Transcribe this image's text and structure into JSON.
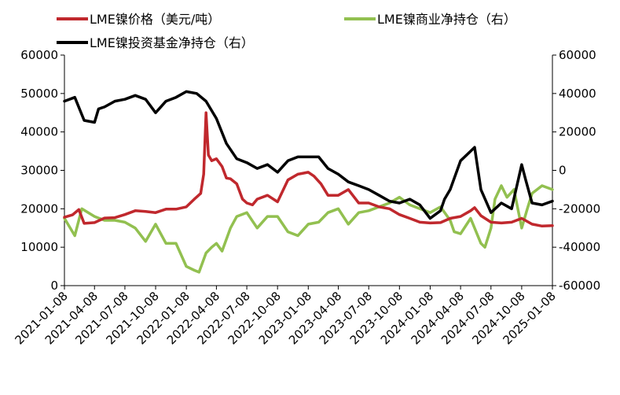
{
  "chart_data": {
    "type": "line",
    "title": "",
    "xlabel": "",
    "ylabel": "",
    "ylim": [
      0,
      60000
    ],
    "y2lim": [
      -60000,
      60000
    ],
    "y_ticks": [
      "0",
      "10000",
      "20000",
      "30000",
      "40000",
      "50000",
      "60000"
    ],
    "y2_ticks": [
      "-60000",
      "-40000",
      "-20000",
      "0",
      "20000",
      "40000",
      "60000"
    ],
    "x_ticks": [
      "2021-01-08",
      "2021-04-08",
      "2021-07-08",
      "2021-10-08",
      "2022-01-08",
      "2022-04-08",
      "2022-07-08",
      "2022-10-08",
      "2023-01-08",
      "2023-04-08",
      "2023-07-08",
      "2023-10-08",
      "2024-01-08",
      "2024-04-08",
      "2024-07-08",
      "2024-10-08",
      "2025-01-08"
    ],
    "legend_position": "top",
    "grid": false,
    "series": [
      {
        "name": "LME镍价格（美元/吨）",
        "axis": "left",
        "color": "#c0282d",
        "points": [
          [
            "2021-01-08",
            17800
          ],
          [
            "2021-02-01",
            18400
          ],
          [
            "2021-02-20",
            19800
          ],
          [
            "2021-03-08",
            16200
          ],
          [
            "2021-04-08",
            16400
          ],
          [
            "2021-05-08",
            17600
          ],
          [
            "2021-06-08",
            17700
          ],
          [
            "2021-07-08",
            18500
          ],
          [
            "2021-08-08",
            19500
          ],
          [
            "2021-09-08",
            19300
          ],
          [
            "2021-10-08",
            19000
          ],
          [
            "2021-11-08",
            19900
          ],
          [
            "2021-12-08",
            19900
          ],
          [
            "2022-01-08",
            20500
          ],
          [
            "2022-02-01",
            22500
          ],
          [
            "2022-02-20",
            24000
          ],
          [
            "2022-03-01",
            29000
          ],
          [
            "2022-03-08",
            45000
          ],
          [
            "2022-03-15",
            34000
          ],
          [
            "2022-03-25",
            32500
          ],
          [
            "2022-04-08",
            33000
          ],
          [
            "2022-04-25",
            31000
          ],
          [
            "2022-05-08",
            28000
          ],
          [
            "2022-05-20",
            27800
          ],
          [
            "2022-06-08",
            26500
          ],
          [
            "2022-06-25",
            22500
          ],
          [
            "2022-07-08",
            21500
          ],
          [
            "2022-07-25",
            21000
          ],
          [
            "2022-08-08",
            22500
          ],
          [
            "2022-09-08",
            23500
          ],
          [
            "2022-10-08",
            21800
          ],
          [
            "2022-11-08",
            27500
          ],
          [
            "2022-12-08",
            29000
          ],
          [
            "2023-01-08",
            29500
          ],
          [
            "2023-01-25",
            28500
          ],
          [
            "2023-02-15",
            26500
          ],
          [
            "2023-03-08",
            23500
          ],
          [
            "2023-04-08",
            23500
          ],
          [
            "2023-05-08",
            25000
          ],
          [
            "2023-06-08",
            21500
          ],
          [
            "2023-07-08",
            21500
          ],
          [
            "2023-08-08",
            20500
          ],
          [
            "2023-09-08",
            20000
          ],
          [
            "2023-10-08",
            18500
          ],
          [
            "2023-11-08",
            17500
          ],
          [
            "2023-12-08",
            16500
          ],
          [
            "2024-01-08",
            16300
          ],
          [
            "2024-02-08",
            16400
          ],
          [
            "2024-03-08",
            17500
          ],
          [
            "2024-04-08",
            18000
          ],
          [
            "2024-05-08",
            19500
          ],
          [
            "2024-05-20",
            20300
          ],
          [
            "2024-06-08",
            18200
          ],
          [
            "2024-07-08",
            16500
          ],
          [
            "2024-08-08",
            16300
          ],
          [
            "2024-09-08",
            16500
          ],
          [
            "2024-10-08",
            17500
          ],
          [
            "2024-11-08",
            16000
          ],
          [
            "2024-12-08",
            15500
          ],
          [
            "2025-01-08",
            15600
          ]
        ]
      },
      {
        "name": "LME镍商业净持仓（右）",
        "axis": "right",
        "color": "#92c050",
        "points": [
          [
            "2021-01-08",
            -25000
          ],
          [
            "2021-02-08",
            -34000
          ],
          [
            "2021-03-01",
            -20000
          ],
          [
            "2021-04-08",
            -24000
          ],
          [
            "2021-05-08",
            -26000
          ],
          [
            "2021-06-08",
            -26000
          ],
          [
            "2021-07-08",
            -27000
          ],
          [
            "2021-08-08",
            -30000
          ],
          [
            "2021-09-08",
            -37000
          ],
          [
            "2021-10-08",
            -28000
          ],
          [
            "2021-11-08",
            -38000
          ],
          [
            "2021-12-08",
            -38000
          ],
          [
            "2022-01-08",
            -50000
          ],
          [
            "2022-02-01",
            -52000
          ],
          [
            "2022-02-15",
            -53000
          ],
          [
            "2022-03-08",
            -43000
          ],
          [
            "2022-03-25",
            -40000
          ],
          [
            "2022-04-08",
            -38000
          ],
          [
            "2022-04-25",
            -42000
          ],
          [
            "2022-05-20",
            -30000
          ],
          [
            "2022-06-08",
            -24000
          ],
          [
            "2022-07-08",
            -22000
          ],
          [
            "2022-08-08",
            -30000
          ],
          [
            "2022-09-08",
            -24000
          ],
          [
            "2022-10-08",
            -24000
          ],
          [
            "2022-11-08",
            -32000
          ],
          [
            "2022-12-08",
            -34000
          ],
          [
            "2023-01-08",
            -28000
          ],
          [
            "2023-02-08",
            -27000
          ],
          [
            "2023-03-08",
            -22000
          ],
          [
            "2023-04-08",
            -20000
          ],
          [
            "2023-05-08",
            -28000
          ],
          [
            "2023-06-08",
            -22000
          ],
          [
            "2023-07-08",
            -21000
          ],
          [
            "2023-08-08",
            -19000
          ],
          [
            "2023-09-08",
            -17000
          ],
          [
            "2023-10-08",
            -14000
          ],
          [
            "2023-11-08",
            -18000
          ],
          [
            "2023-12-08",
            -20000
          ],
          [
            "2024-01-08",
            -22000
          ],
          [
            "2024-02-08",
            -19000
          ],
          [
            "2024-03-08",
            -26000
          ],
          [
            "2024-03-20",
            -32000
          ],
          [
            "2024-04-08",
            -33000
          ],
          [
            "2024-05-08",
            -25000
          ],
          [
            "2024-06-08",
            -38000
          ],
          [
            "2024-06-20",
            -40000
          ],
          [
            "2024-07-08",
            -30000
          ],
          [
            "2024-07-20",
            -15000
          ],
          [
            "2024-08-08",
            -8000
          ],
          [
            "2024-08-25",
            -14000
          ],
          [
            "2024-09-15",
            -10000
          ],
          [
            "2024-10-08",
            -30000
          ],
          [
            "2024-10-25",
            -20000
          ],
          [
            "2024-11-08",
            -12000
          ],
          [
            "2024-12-08",
            -8000
          ],
          [
            "2025-01-08",
            -10000
          ]
        ]
      },
      {
        "name": "LME镍投资基金净持仓（右）",
        "axis": "right",
        "color": "#000000",
        "points": [
          [
            "2021-01-08",
            36000
          ],
          [
            "2021-02-08",
            38000
          ],
          [
            "2021-03-08",
            26000
          ],
          [
            "2021-04-08",
            25000
          ],
          [
            "2021-04-20",
            32000
          ],
          [
            "2021-05-08",
            33000
          ],
          [
            "2021-06-08",
            36000
          ],
          [
            "2021-07-08",
            37000
          ],
          [
            "2021-08-08",
            39000
          ],
          [
            "2021-09-08",
            37000
          ],
          [
            "2021-10-08",
            30000
          ],
          [
            "2021-11-08",
            36000
          ],
          [
            "2021-12-08",
            38000
          ],
          [
            "2022-01-08",
            41000
          ],
          [
            "2022-02-08",
            40000
          ],
          [
            "2022-03-08",
            36000
          ],
          [
            "2022-04-08",
            27000
          ],
          [
            "2022-05-08",
            14000
          ],
          [
            "2022-06-08",
            6000
          ],
          [
            "2022-07-08",
            4000
          ],
          [
            "2022-08-08",
            1000
          ],
          [
            "2022-09-08",
            3000
          ],
          [
            "2022-10-08",
            -1000
          ],
          [
            "2022-11-08",
            5000
          ],
          [
            "2022-12-08",
            7000
          ],
          [
            "2023-01-08",
            7000
          ],
          [
            "2023-02-08",
            7000
          ],
          [
            "2023-03-08",
            1000
          ],
          [
            "2023-04-08",
            -2000
          ],
          [
            "2023-05-08",
            -6000
          ],
          [
            "2023-06-08",
            -8000
          ],
          [
            "2023-07-08",
            -10000
          ],
          [
            "2023-08-08",
            -13000
          ],
          [
            "2023-09-08",
            -16000
          ],
          [
            "2023-10-08",
            -17000
          ],
          [
            "2023-11-08",
            -15000
          ],
          [
            "2023-12-08",
            -18000
          ],
          [
            "2024-01-08",
            -25000
          ],
          [
            "2024-02-08",
            -21000
          ],
          [
            "2024-02-20",
            -15000
          ],
          [
            "2024-03-08",
            -10000
          ],
          [
            "2024-04-08",
            5000
          ],
          [
            "2024-05-08",
            10000
          ],
          [
            "2024-05-20",
            12000
          ],
          [
            "2024-06-08",
            -10000
          ],
          [
            "2024-07-08",
            -22000
          ],
          [
            "2024-08-08",
            -17000
          ],
          [
            "2024-09-08",
            -20000
          ],
          [
            "2024-10-08",
            3000
          ],
          [
            "2024-10-20",
            -5000
          ],
          [
            "2024-11-08",
            -17000
          ],
          [
            "2024-12-08",
            -18000
          ],
          [
            "2025-01-08",
            -16000
          ]
        ]
      }
    ]
  }
}
